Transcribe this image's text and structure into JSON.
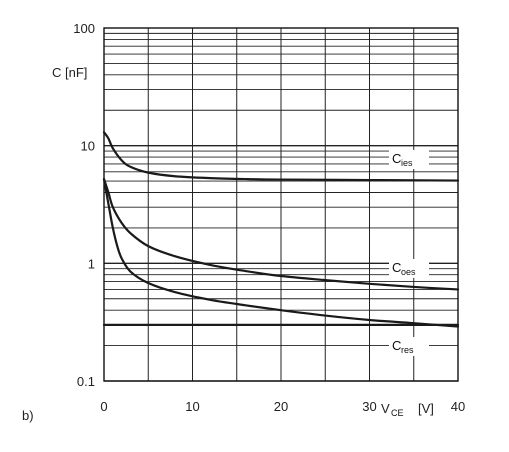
{
  "chart_data": {
    "type": "line",
    "panel_label": "b)",
    "ylabel": "C [nF]",
    "xlabel_prefix": "V",
    "xlabel_sub": "CE",
    "xlabel_unit": "[V]",
    "xlim": [
      0,
      40
    ],
    "ylim": [
      0.1,
      100
    ],
    "yscale": "log",
    "grid": true,
    "x_ticks": [
      "0",
      "10",
      "20",
      "30",
      "40"
    ],
    "y_ticks": [
      "0.1",
      "1",
      "10",
      "100"
    ],
    "series": [
      {
        "name": "C",
        "sub": "ies",
        "x": [
          0,
          0.5,
          1,
          2,
          3,
          5,
          8,
          12,
          16,
          20,
          30,
          40
        ],
        "y": [
          13,
          11.5,
          9.5,
          7.5,
          6.6,
          5.9,
          5.5,
          5.3,
          5.2,
          5.15,
          5.1,
          5.05
        ]
      },
      {
        "name": "C",
        "sub": "oes",
        "x": [
          0,
          0.5,
          1,
          2,
          3,
          5,
          8,
          12,
          16,
          20,
          25,
          30,
          35,
          40
        ],
        "y": [
          5.2,
          4.0,
          3.0,
          2.2,
          1.8,
          1.4,
          1.15,
          0.97,
          0.86,
          0.78,
          0.72,
          0.67,
          0.63,
          0.6
        ]
      },
      {
        "name": "C",
        "sub": "res",
        "x": [
          0,
          0.5,
          1,
          1.5,
          2,
          3,
          5,
          8,
          12,
          16,
          20,
          25,
          30,
          35,
          40
        ],
        "y": [
          5.2,
          3.2,
          2.0,
          1.4,
          1.1,
          0.85,
          0.68,
          0.57,
          0.49,
          0.44,
          0.4,
          0.36,
          0.33,
          0.31,
          0.29
        ]
      },
      {
        "name": "",
        "sub": "",
        "x": [
          0,
          40
        ],
        "y": [
          0.3,
          0.3
        ]
      }
    ]
  }
}
